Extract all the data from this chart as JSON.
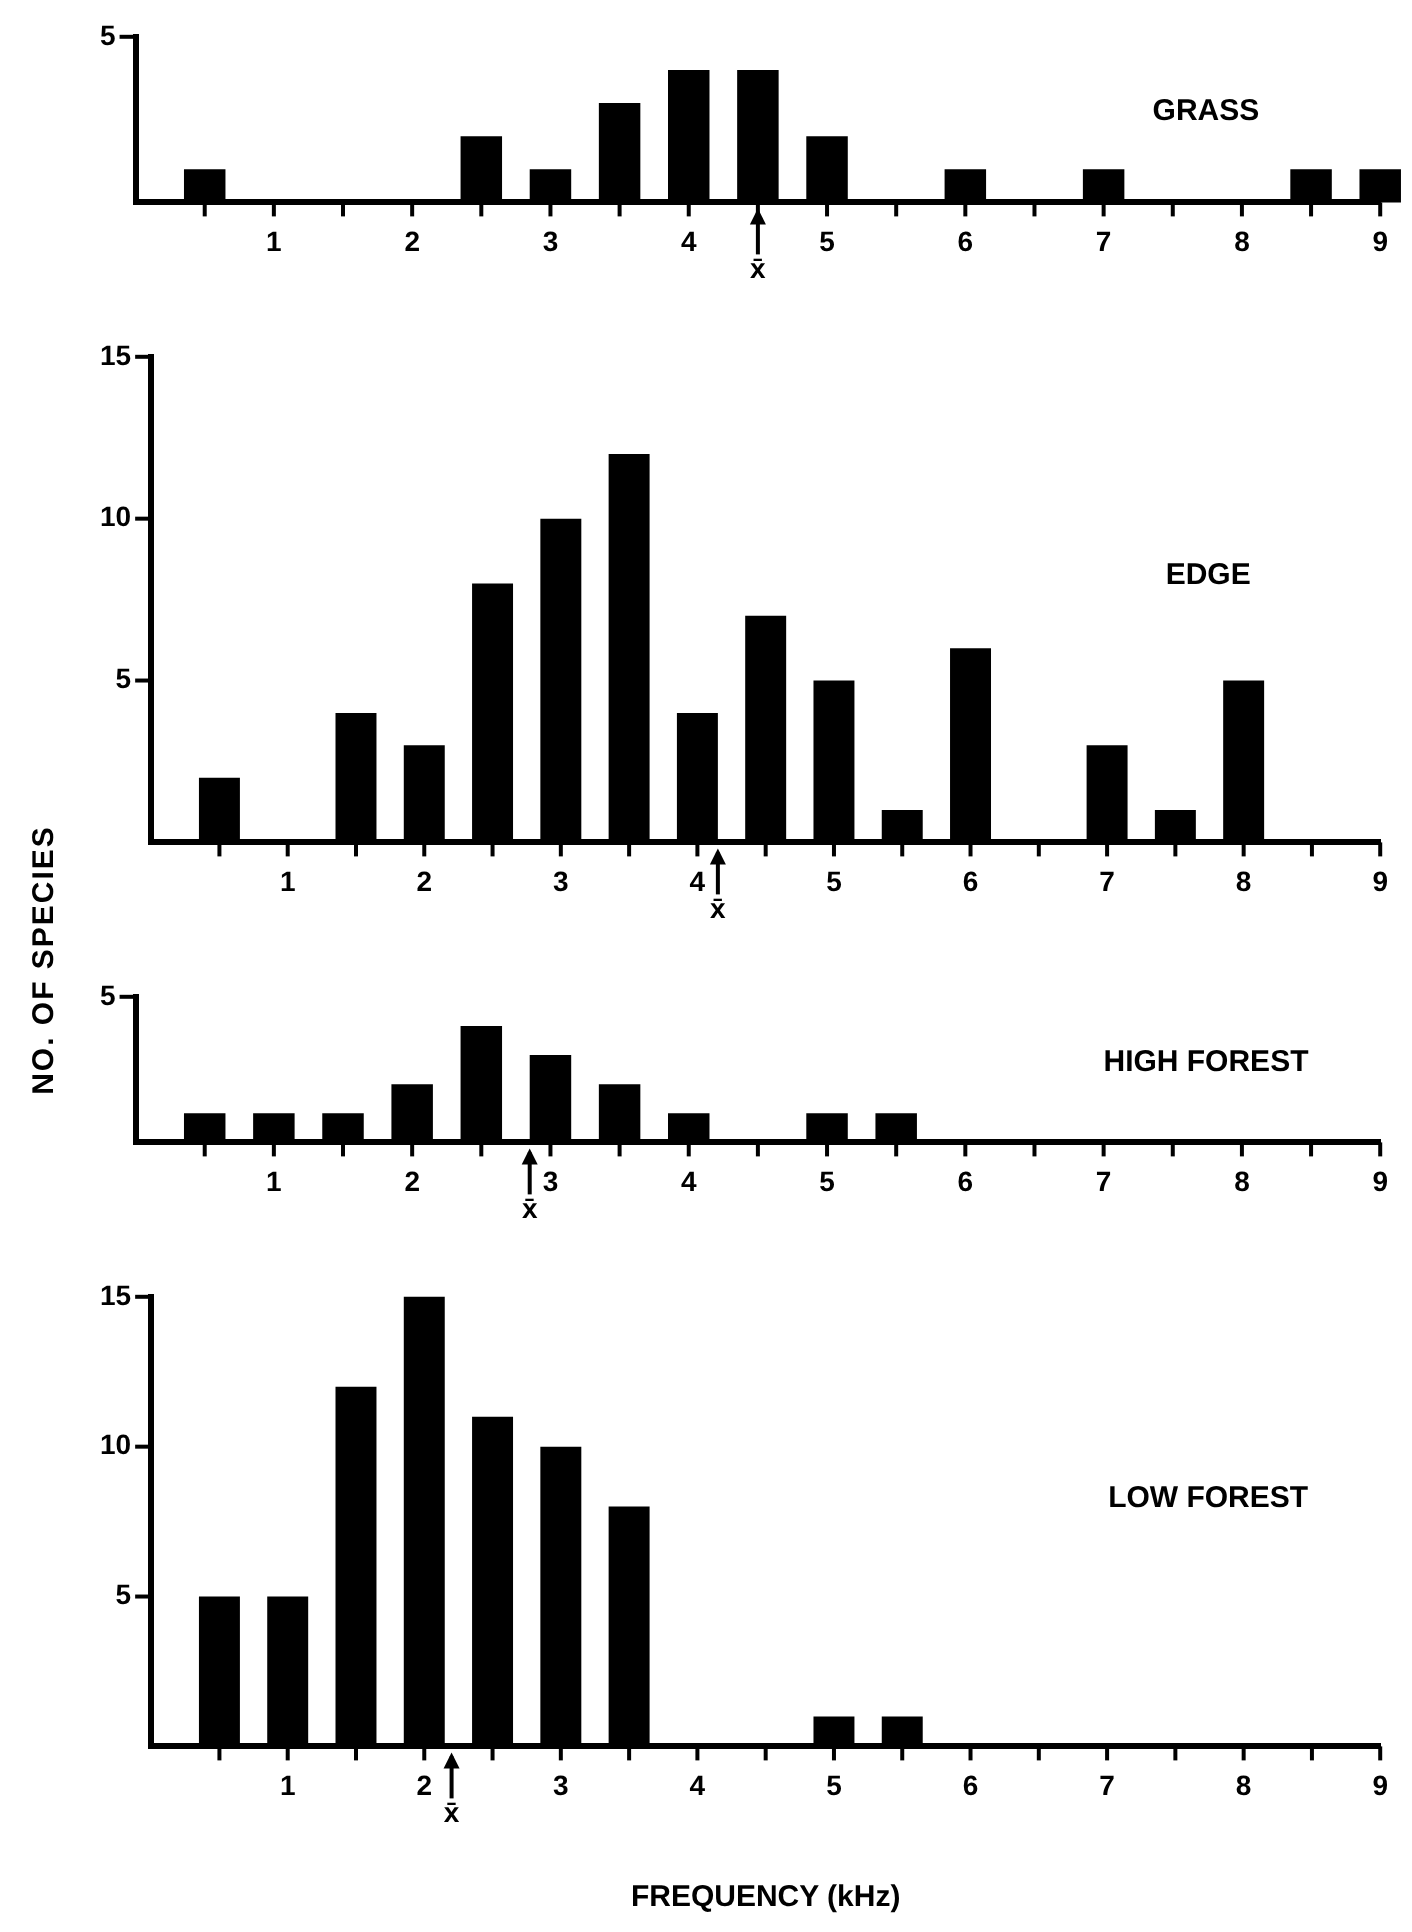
{
  "chart_data": [
    {
      "type": "bar",
      "title": "GRASS",
      "x": [
        0.5,
        1,
        1.5,
        2,
        2.5,
        3,
        3.5,
        4,
        4.5,
        5,
        5.5,
        6,
        6.5,
        7,
        7.5,
        8,
        8.5,
        9
      ],
      "values": [
        1,
        0,
        0,
        0,
        2,
        1,
        3,
        4,
        4,
        2,
        0,
        1,
        0,
        1,
        0,
        0,
        1,
        1
      ],
      "color": "#000000",
      "xlim": [
        0,
        9
      ],
      "xticks": [
        {
          "value": 0.5,
          "label": null
        },
        1,
        {
          "value": 1.5,
          "label": null
        },
        2,
        {
          "value": 2.5,
          "label": null
        },
        3,
        {
          "value": 3.5,
          "label": null
        },
        4,
        {
          "value": 4.5,
          "label": null
        },
        5,
        {
          "value": 5.5,
          "label": null
        },
        6,
        {
          "value": 6.5,
          "label": null
        },
        7,
        {
          "value": 7.5,
          "label": null
        },
        8,
        {
          "value": 8.5,
          "label": null
        },
        9
      ],
      "ylim": [
        0,
        5
      ],
      "yticks": [
        5
      ],
      "annotations": [
        {
          "text": "x̄",
          "x": 4.5,
          "y": 0
        }
      ]
    },
    {
      "type": "bar",
      "title": "EDGE",
      "ylabel": "NO. OF SPECIES",
      "x": [
        0.5,
        1,
        1.5,
        2,
        2.5,
        3,
        3.5,
        4,
        4.5,
        5,
        5.5,
        6,
        6.5,
        7,
        7.5,
        8,
        8.5,
        9
      ],
      "values": [
        2,
        0,
        4,
        3,
        8,
        10,
        12,
        4,
        7,
        5,
        1,
        6,
        0,
        3,
        1,
        5,
        0,
        0
      ],
      "color": "#000000",
      "xlim": [
        0,
        9
      ],
      "xticks": [
        {
          "value": 0.5,
          "label": null
        },
        1,
        {
          "value": 1.5,
          "label": null
        },
        2,
        {
          "value": 2.5,
          "label": null
        },
        3,
        {
          "value": 3.5,
          "label": null
        },
        4,
        {
          "value": 4.5,
          "label": null
        },
        5,
        {
          "value": 5.5,
          "label": null
        },
        6,
        {
          "value": 6.5,
          "label": null
        },
        7,
        {
          "value": 7.5,
          "label": null
        },
        8,
        {
          "value": 8.5,
          "label": null
        },
        9
      ],
      "ylim": [
        0,
        15
      ],
      "yticks": [
        5,
        10,
        15
      ],
      "annotations": [
        {
          "text": "x̄",
          "x": 4.15,
          "y": 0
        }
      ]
    },
    {
      "type": "bar",
      "title": "HIGH FOREST",
      "x": [
        0.5,
        1,
        1.5,
        2,
        2.5,
        3,
        3.5,
        4,
        4.5,
        5,
        5.5,
        6,
        6.5,
        7,
        7.5,
        8,
        8.5,
        9
      ],
      "values": [
        1,
        1,
        1,
        2,
        4,
        3,
        2,
        1,
        0,
        1,
        1,
        0,
        0,
        0,
        0,
        0,
        0,
        0
      ],
      "color": "#000000",
      "xlim": [
        0,
        9
      ],
      "xticks": [
        {
          "value": 0.5,
          "label": null
        },
        1,
        {
          "value": 1.5,
          "label": null
        },
        2,
        {
          "value": 2.5,
          "label": null
        },
        3,
        {
          "value": 3.5,
          "label": null
        },
        4,
        {
          "value": 4.5,
          "label": null
        },
        5,
        {
          "value": 5.5,
          "label": null
        },
        6,
        {
          "value": 6.5,
          "label": null
        },
        7,
        {
          "value": 7.5,
          "label": null
        },
        8,
        {
          "value": 8.5,
          "label": null
        },
        9
      ],
      "ylim": [
        0,
        5
      ],
      "yticks": [
        5
      ],
      "annotations": [
        {
          "text": "x̄",
          "x": 2.85,
          "y": 0
        }
      ]
    },
    {
      "type": "bar",
      "title": "LOW FOREST",
      "xlabel": "FREQUENCY (kHz)",
      "x": [
        0.5,
        1,
        1.5,
        2,
        2.5,
        3,
        3.5,
        4,
        4.5,
        5,
        5.5,
        6,
        6.5,
        7,
        7.5,
        8,
        8.5,
        9
      ],
      "values": [
        5,
        5,
        12,
        15,
        11,
        10,
        8,
        0,
        0,
        1,
        1,
        0,
        0,
        0,
        0,
        0,
        0,
        0
      ],
      "color": "#000000",
      "xlim": [
        0,
        9
      ],
      "xticks": [
        {
          "value": 0.5,
          "label": null
        },
        1,
        {
          "value": 1.5,
          "label": null
        },
        2,
        {
          "value": 2.5,
          "label": null
        },
        3,
        {
          "value": 3.5,
          "label": null
        },
        4,
        {
          "value": 4.5,
          "label": null
        },
        5,
        {
          "value": 5.5,
          "label": null
        },
        6,
        {
          "value": 6.5,
          "label": null
        },
        7,
        {
          "value": 7.5,
          "label": null
        },
        8,
        {
          "value": 8.5,
          "label": null
        },
        9
      ],
      "ylim": [
        0,
        15
      ],
      "yticks": [
        5,
        10,
        15
      ],
      "annotations": [
        {
          "text": "x̄",
          "x": 2.2,
          "y": 0
        }
      ]
    }
  ]
}
